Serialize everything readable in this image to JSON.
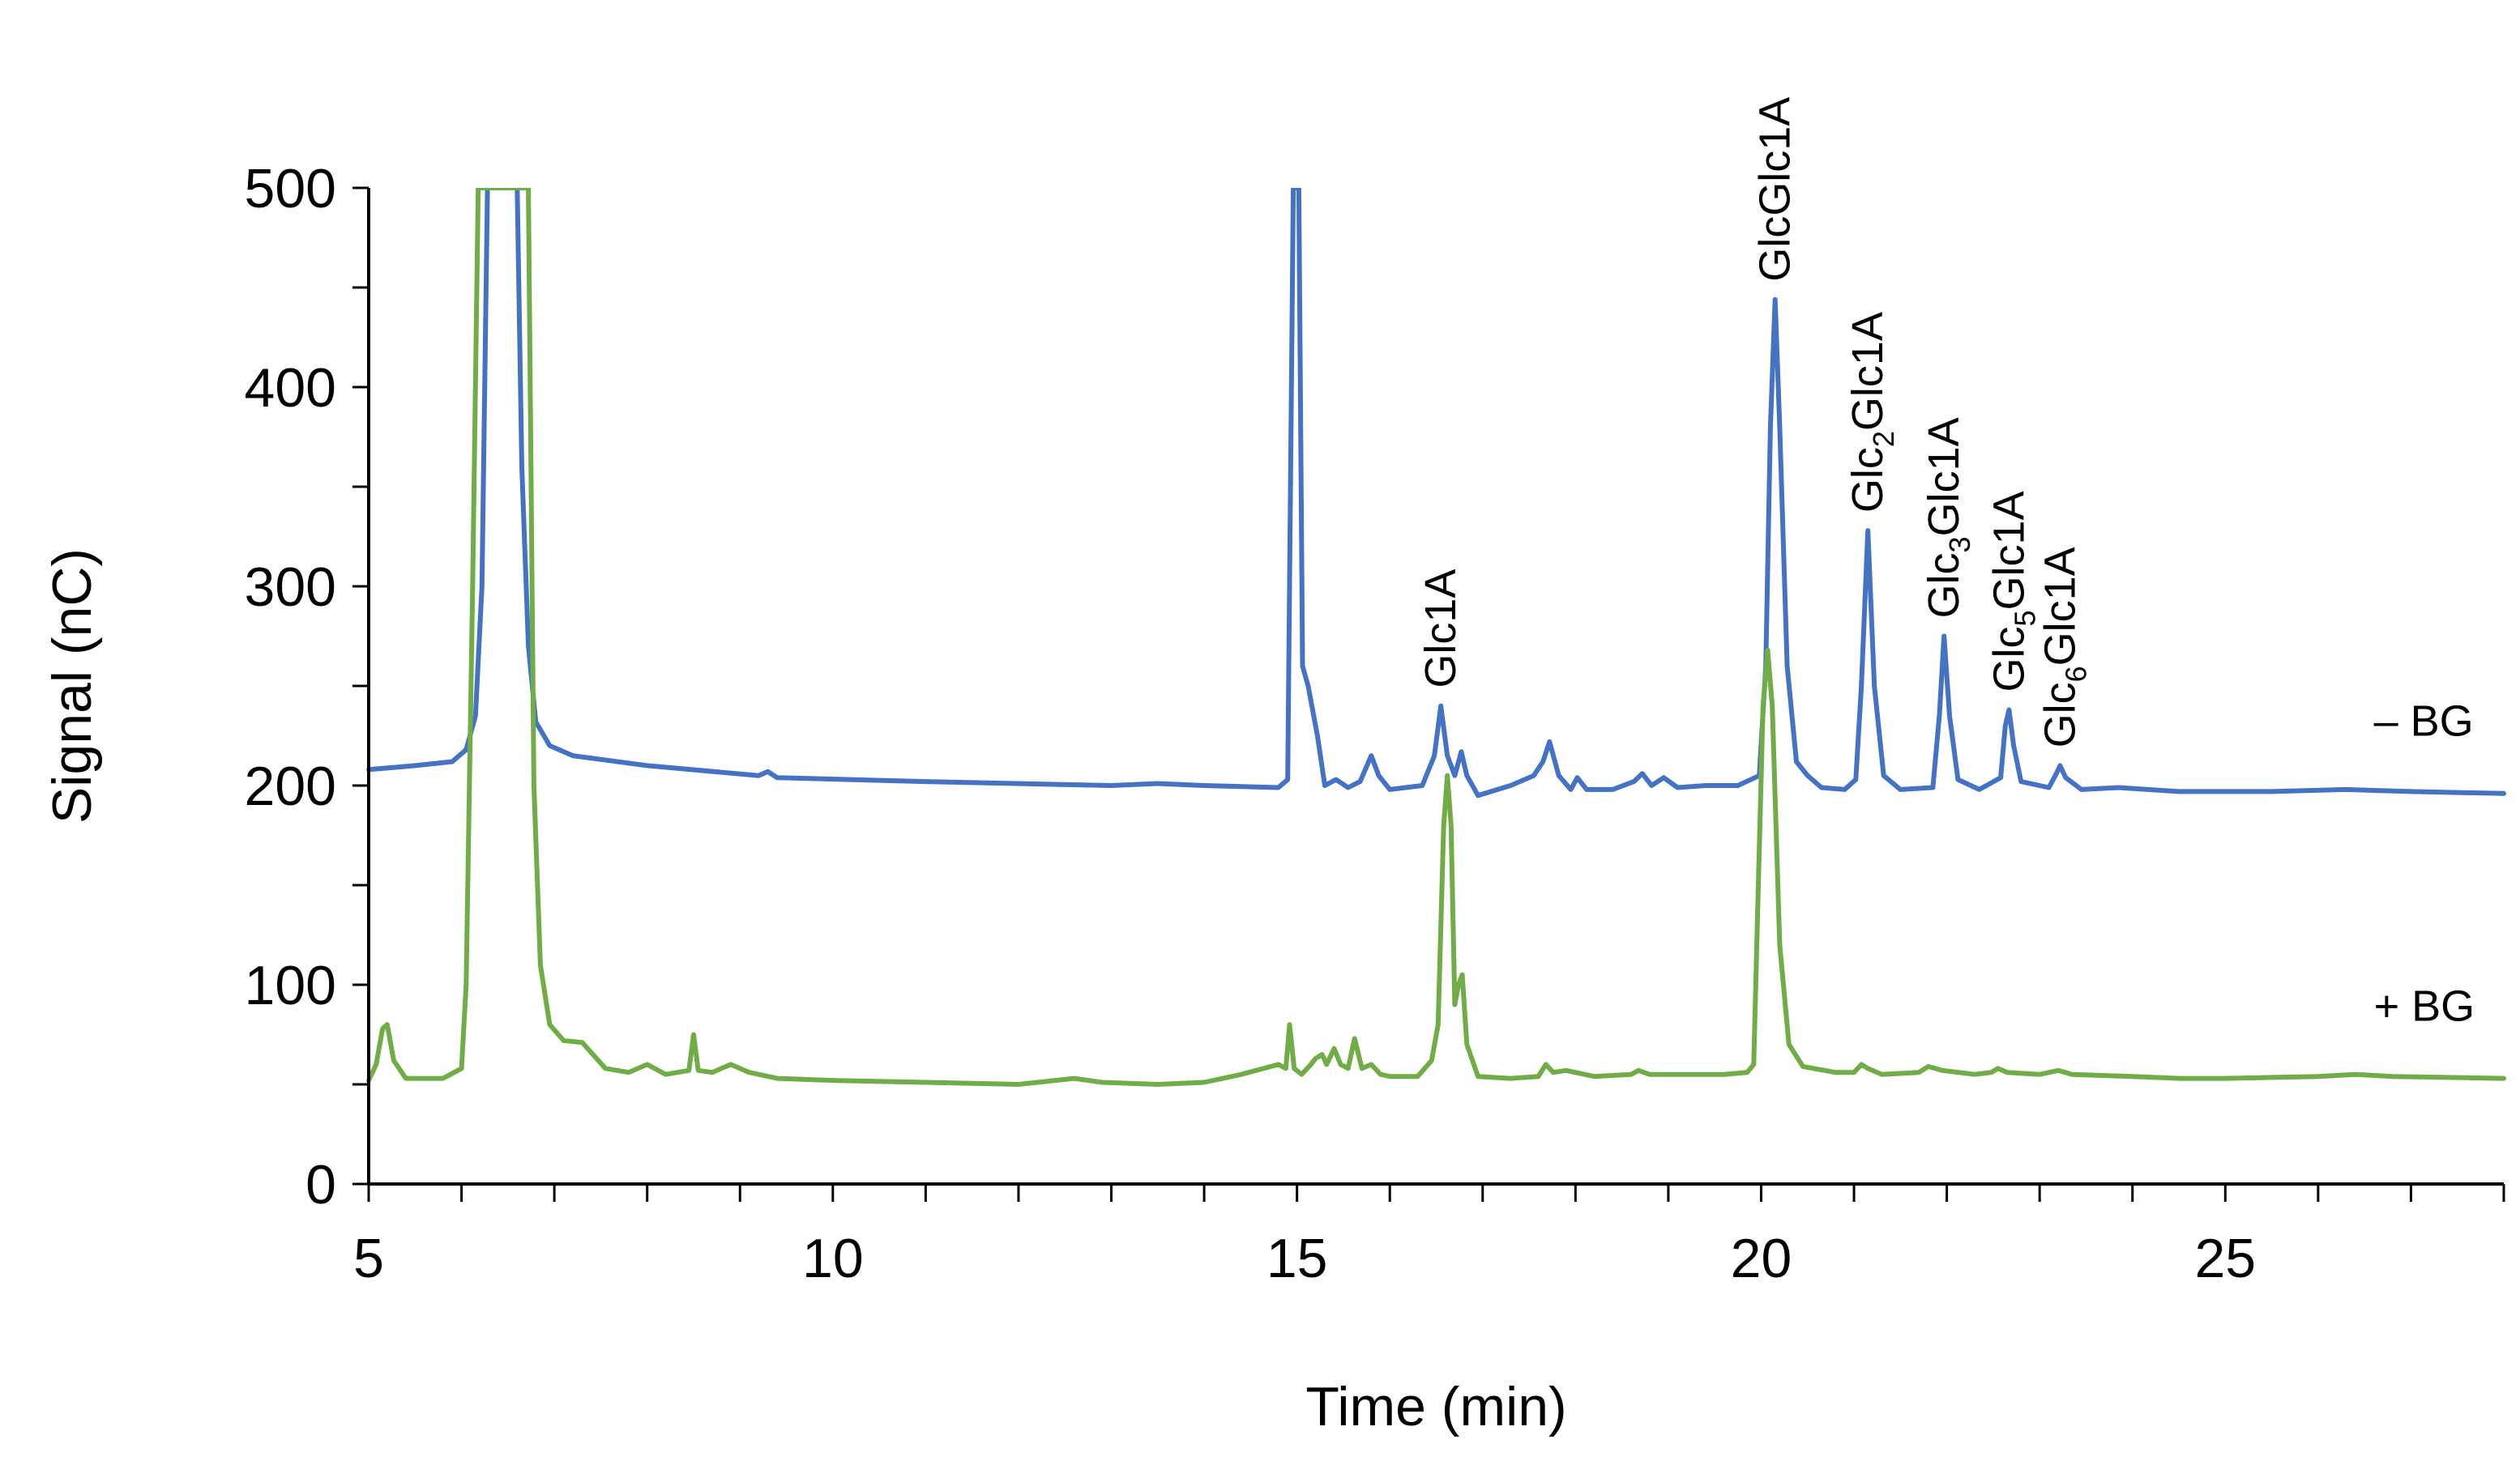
{
  "chart_data": {
    "type": "line",
    "title": "",
    "xlabel": "Time (min)",
    "ylabel": "Signal (nC)",
    "xlim": [
      5,
      28
    ],
    "ylim": [
      0,
      500
    ],
    "x_ticks": [
      5,
      10,
      15,
      20,
      25
    ],
    "y_ticks": [
      0,
      100,
      200,
      300,
      400,
      500
    ],
    "x_minor_step": 1,
    "y_minor_step": 50,
    "grid": false,
    "legend": "none",
    "peak_labels": [
      {
        "x": 16.55,
        "y_top": 240,
        "base": "Glc1A",
        "sub": "",
        "tail": ""
      },
      {
        "x": 20.15,
        "y_top": 444,
        "base": "GlcGlc1A",
        "sub": "",
        "tail": ""
      },
      {
        "x": 21.15,
        "y_top": 328,
        "base": "Glc",
        "sub": "2",
        "tail": "Glc1A"
      },
      {
        "x": 21.97,
        "y_top": 275,
        "base": "Glc",
        "sub": "3",
        "tail": "Glc1A"
      },
      {
        "x": 22.67,
        "y_top": 238,
        "base": "Glc",
        "sub": "5",
        "tail": "Glc1A"
      },
      {
        "x": 23.22,
        "y_top": 210,
        "base": "Glc",
        "sub": "6",
        "tail": "Glc1A"
      }
    ],
    "series": [
      {
        "name": "– BG",
        "color": "#4472C4",
        "label_x": 26.6,
        "label_y": 225,
        "points": [
          [
            5.0,
            208
          ],
          [
            5.5,
            210
          ],
          [
            5.9,
            212
          ],
          [
            6.05,
            218
          ],
          [
            6.15,
            235
          ],
          [
            6.22,
            300
          ],
          [
            6.28,
            500
          ],
          [
            6.6,
            500
          ],
          [
            6.65,
            360
          ],
          [
            6.72,
            270
          ],
          [
            6.8,
            232
          ],
          [
            6.95,
            220
          ],
          [
            7.2,
            215
          ],
          [
            8,
            210
          ],
          [
            9.2,
            205
          ],
          [
            9.3,
            207
          ],
          [
            9.4,
            204
          ],
          [
            11,
            202
          ],
          [
            13,
            200
          ],
          [
            13.5,
            201
          ],
          [
            14,
            200
          ],
          [
            14.8,
            199
          ],
          [
            14.9,
            203
          ],
          [
            14.96,
            500
          ],
          [
            15.02,
            500
          ],
          [
            15.06,
            260
          ],
          [
            15.12,
            250
          ],
          [
            15.22,
            225
          ],
          [
            15.3,
            200
          ],
          [
            15.42,
            203
          ],
          [
            15.55,
            199
          ],
          [
            15.68,
            202
          ],
          [
            15.8,
            215
          ],
          [
            15.88,
            205
          ],
          [
            16.0,
            198
          ],
          [
            16.35,
            200
          ],
          [
            16.48,
            215
          ],
          [
            16.55,
            240
          ],
          [
            16.62,
            215
          ],
          [
            16.7,
            205
          ],
          [
            16.77,
            217
          ],
          [
            16.83,
            205
          ],
          [
            16.95,
            195
          ],
          [
            17.3,
            200
          ],
          [
            17.55,
            205
          ],
          [
            17.65,
            212
          ],
          [
            17.72,
            222
          ],
          [
            17.82,
            205
          ],
          [
            17.95,
            198
          ],
          [
            18.02,
            204
          ],
          [
            18.12,
            198
          ],
          [
            18.4,
            198
          ],
          [
            18.63,
            202
          ],
          [
            18.72,
            206
          ],
          [
            18.82,
            200
          ],
          [
            18.95,
            204
          ],
          [
            19.1,
            199
          ],
          [
            19.4,
            200
          ],
          [
            19.75,
            200
          ],
          [
            19.98,
            205
          ],
          [
            20.05,
            260
          ],
          [
            20.1,
            380
          ],
          [
            20.15,
            444
          ],
          [
            20.2,
            380
          ],
          [
            20.28,
            260
          ],
          [
            20.38,
            212
          ],
          [
            20.5,
            205
          ],
          [
            20.65,
            199
          ],
          [
            20.9,
            198
          ],
          [
            21.02,
            203
          ],
          [
            21.08,
            250
          ],
          [
            21.15,
            328
          ],
          [
            21.22,
            250
          ],
          [
            21.32,
            205
          ],
          [
            21.5,
            198
          ],
          [
            21.85,
            199
          ],
          [
            21.92,
            235
          ],
          [
            21.97,
            275
          ],
          [
            22.03,
            235
          ],
          [
            22.12,
            203
          ],
          [
            22.35,
            198
          ],
          [
            22.58,
            204
          ],
          [
            22.63,
            230
          ],
          [
            22.67,
            238
          ],
          [
            22.72,
            220
          ],
          [
            22.8,
            202
          ],
          [
            23.1,
            199
          ],
          [
            23.18,
            206
          ],
          [
            23.22,
            210
          ],
          [
            23.28,
            204
          ],
          [
            23.45,
            198
          ],
          [
            23.85,
            199
          ],
          [
            24.5,
            197
          ],
          [
            25.5,
            197
          ],
          [
            26.3,
            198
          ],
          [
            27,
            197
          ],
          [
            28,
            196
          ]
        ]
      },
      {
        "name": "+ BG",
        "color": "#70AD47",
        "label_x": 26.6,
        "label_y": 82,
        "points": [
          [
            5.0,
            52
          ],
          [
            5.08,
            60
          ],
          [
            5.15,
            78
          ],
          [
            5.2,
            80
          ],
          [
            5.27,
            62
          ],
          [
            5.4,
            53
          ],
          [
            5.8,
            53
          ],
          [
            6.0,
            58
          ],
          [
            6.05,
            100
          ],
          [
            6.12,
            300
          ],
          [
            6.18,
            500
          ],
          [
            6.72,
            500
          ],
          [
            6.78,
            200
          ],
          [
            6.85,
            110
          ],
          [
            6.95,
            80
          ],
          [
            7.1,
            72
          ],
          [
            7.3,
            71
          ],
          [
            7.55,
            58
          ],
          [
            7.8,
            56
          ],
          [
            8.0,
            60
          ],
          [
            8.2,
            55
          ],
          [
            8.45,
            57
          ],
          [
            8.5,
            75
          ],
          [
            8.55,
            57
          ],
          [
            8.7,
            56
          ],
          [
            8.9,
            60
          ],
          [
            9.1,
            56
          ],
          [
            9.4,
            53
          ],
          [
            10,
            52
          ],
          [
            11,
            51
          ],
          [
            12,
            50
          ],
          [
            12.6,
            53
          ],
          [
            12.9,
            51
          ],
          [
            13.5,
            50
          ],
          [
            14,
            51
          ],
          [
            14.4,
            55
          ],
          [
            14.8,
            60
          ],
          [
            14.88,
            58
          ],
          [
            14.92,
            80
          ],
          [
            14.97,
            58
          ],
          [
            15.05,
            55
          ],
          [
            15.15,
            60
          ],
          [
            15.2,
            63
          ],
          [
            15.27,
            65
          ],
          [
            15.32,
            60
          ],
          [
            15.4,
            68
          ],
          [
            15.47,
            60
          ],
          [
            15.55,
            58
          ],
          [
            15.62,
            73
          ],
          [
            15.7,
            58
          ],
          [
            15.8,
            60
          ],
          [
            15.9,
            55
          ],
          [
            16.0,
            54
          ],
          [
            16.3,
            54
          ],
          [
            16.45,
            62
          ],
          [
            16.52,
            80
          ],
          [
            16.58,
            180
          ],
          [
            16.62,
            205
          ],
          [
            16.66,
            180
          ],
          [
            16.7,
            90
          ],
          [
            16.74,
            100
          ],
          [
            16.78,
            105
          ],
          [
            16.83,
            70
          ],
          [
            16.95,
            54
          ],
          [
            17.3,
            53
          ],
          [
            17.6,
            54
          ],
          [
            17.68,
            60
          ],
          [
            17.76,
            56
          ],
          [
            17.9,
            57
          ],
          [
            18.2,
            54
          ],
          [
            18.6,
            55
          ],
          [
            18.68,
            57
          ],
          [
            18.8,
            55
          ],
          [
            19.2,
            55
          ],
          [
            19.6,
            55
          ],
          [
            19.85,
            56
          ],
          [
            19.92,
            60
          ],
          [
            19.97,
            150
          ],
          [
            20.02,
            240
          ],
          [
            20.07,
            268
          ],
          [
            20.12,
            240
          ],
          [
            20.2,
            120
          ],
          [
            20.3,
            70
          ],
          [
            20.45,
            59
          ],
          [
            20.8,
            56
          ],
          [
            21.0,
            56
          ],
          [
            21.08,
            60
          ],
          [
            21.15,
            58
          ],
          [
            21.3,
            55
          ],
          [
            21.7,
            56
          ],
          [
            21.8,
            59
          ],
          [
            21.95,
            57
          ],
          [
            22.3,
            55
          ],
          [
            22.48,
            56
          ],
          [
            22.55,
            58
          ],
          [
            22.65,
            56
          ],
          [
            23.0,
            55
          ],
          [
            23.2,
            57
          ],
          [
            23.35,
            55
          ],
          [
            24,
            54
          ],
          [
            24.5,
            53
          ],
          [
            25,
            53
          ],
          [
            26,
            54
          ],
          [
            26.4,
            55
          ],
          [
            26.8,
            54
          ],
          [
            28,
            53
          ]
        ]
      }
    ]
  }
}
